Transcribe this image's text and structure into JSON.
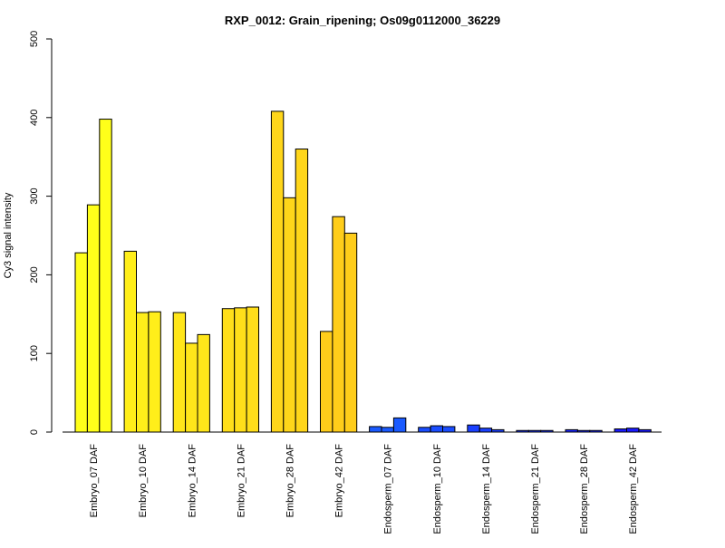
{
  "chart_data": {
    "type": "bar",
    "title": "RXP_0012: Grain_ripening; Os09g0112000_36229",
    "xlabel": "",
    "ylabel": "Cy3 signal intensity",
    "ylim": [
      0,
      500
    ],
    "yticks": [
      0,
      100,
      200,
      300,
      400,
      500
    ],
    "grid": false,
    "legend": "none",
    "categories": [
      "Embryo_07 DAF",
      "Embryo_10 DAF",
      "Embryo_14 DAF",
      "Embryo_21 DAF",
      "Embryo_28 DAF",
      "Embryo_42 DAF",
      "Endosperm_07 DAF",
      "Endosperm_10 DAF",
      "Endosperm_14 DAF",
      "Endosperm_21 DAF",
      "Endosperm_28 DAF",
      "Endosperm_42 DAF"
    ],
    "replicates_per_category": 3,
    "values": [
      [
        228,
        289,
        398
      ],
      [
        230,
        152,
        153
      ],
      [
        152,
        113,
        124
      ],
      [
        157,
        158,
        159
      ],
      [
        408,
        298,
        360
      ],
      [
        128,
        274,
        253
      ],
      [
        7,
        6,
        18
      ],
      [
        6,
        8,
        7
      ],
      [
        9,
        5,
        3
      ],
      [
        2,
        2,
        2
      ],
      [
        3,
        2,
        2
      ],
      [
        4,
        5,
        3
      ]
    ],
    "colors": [
      "#ffff1a",
      "#ffee1a",
      "#ffe61a",
      "#ffde1a",
      "#ffd61a",
      "#ffcd1a",
      "#1a5aff",
      "#1a4dff",
      "#1a40ff",
      "#1a33ff",
      "#1a26ff",
      "#1a1aff"
    ]
  }
}
